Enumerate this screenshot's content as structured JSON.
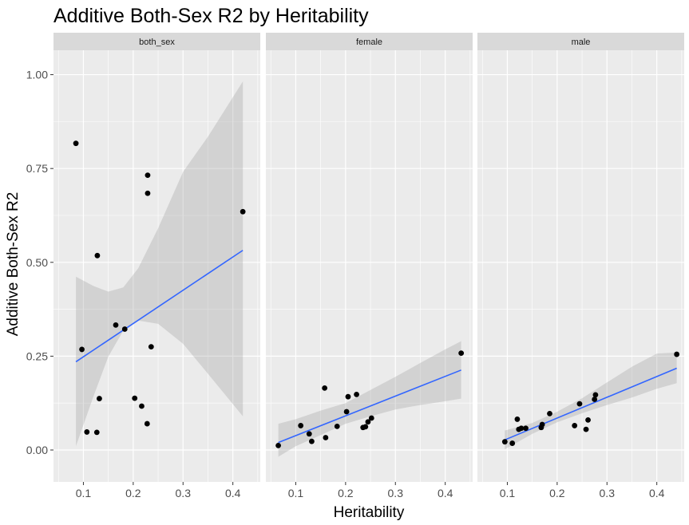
{
  "chart_data": {
    "type": "scatter",
    "title": "Additive Both-Sex R2 by Heritability",
    "xlabel": "Heritability",
    "ylabel": "Additive Both-Sex R2",
    "x_ticks": [
      0.1,
      0.2,
      0.3,
      0.4
    ],
    "x_tick_labels": [
      "0.1",
      "0.2",
      "0.3",
      "0.4"
    ],
    "y_ticks": [
      0.0,
      0.25,
      0.5,
      0.75,
      1.0
    ],
    "y_tick_labels": [
      "0.00",
      "0.25",
      "0.50",
      "0.75",
      "1.00"
    ],
    "xlim": [
      0.04,
      0.455
    ],
    "ylim": [
      -0.085,
      1.065
    ],
    "grid": true,
    "colors": {
      "panel_bg": "#ebebeb",
      "grid": "#ffffff",
      "strip_bg": "#d9d9d9",
      "point": "#000000",
      "fit_line": "#3366ff",
      "ribbon": "#999999"
    },
    "panels": [
      {
        "label": "both_sex",
        "points": [
          [
            0.085,
            0.817
          ],
          [
            0.097,
            0.268
          ],
          [
            0.107,
            0.048
          ],
          [
            0.127,
            0.047
          ],
          [
            0.128,
            0.518
          ],
          [
            0.132,
            0.137
          ],
          [
            0.165,
            0.333
          ],
          [
            0.183,
            0.322
          ],
          [
            0.203,
            0.138
          ],
          [
            0.217,
            0.117
          ],
          [
            0.228,
            0.07
          ],
          [
            0.229,
            0.732
          ],
          [
            0.229,
            0.684
          ],
          [
            0.236,
            0.275
          ],
          [
            0.42,
            0.635
          ]
        ],
        "fit": [
          [
            0.085,
            0.235
          ],
          [
            0.42,
            0.532
          ]
        ],
        "ribbon": [
          [
            0.085,
            0.01,
            0.462
          ],
          [
            0.12,
            0.142,
            0.437
          ],
          [
            0.15,
            0.249,
            0.422
          ],
          [
            0.18,
            0.318,
            0.433
          ],
          [
            0.21,
            0.345,
            0.484
          ],
          [
            0.25,
            0.336,
            0.591
          ],
          [
            0.3,
            0.283,
            0.741
          ],
          [
            0.35,
            0.203,
            0.835
          ],
          [
            0.42,
            0.09,
            0.982
          ]
        ]
      },
      {
        "label": "female",
        "points": [
          [
            0.065,
            0.012
          ],
          [
            0.11,
            0.065
          ],
          [
            0.127,
            0.043
          ],
          [
            0.132,
            0.023
          ],
          [
            0.158,
            0.165
          ],
          [
            0.16,
            0.033
          ],
          [
            0.183,
            0.063
          ],
          [
            0.202,
            0.102
          ],
          [
            0.205,
            0.142
          ],
          [
            0.222,
            0.148
          ],
          [
            0.235,
            0.06
          ],
          [
            0.24,
            0.062
          ],
          [
            0.245,
            0.075
          ],
          [
            0.252,
            0.085
          ],
          [
            0.432,
            0.258
          ]
        ],
        "fit": [
          [
            0.065,
            0.02
          ],
          [
            0.432,
            0.213
          ]
        ],
        "ribbon": [
          [
            0.065,
            -0.018,
            0.07
          ],
          [
            0.1,
            0.01,
            0.082
          ],
          [
            0.15,
            0.04,
            0.105
          ],
          [
            0.2,
            0.07,
            0.125
          ],
          [
            0.25,
            0.09,
            0.16
          ],
          [
            0.3,
            0.108,
            0.195
          ],
          [
            0.35,
            0.12,
            0.232
          ],
          [
            0.4,
            0.13,
            0.268
          ],
          [
            0.432,
            0.137,
            0.29
          ]
        ]
      },
      {
        "label": "male",
        "points": [
          [
            0.095,
            0.022
          ],
          [
            0.11,
            0.018
          ],
          [
            0.12,
            0.082
          ],
          [
            0.123,
            0.055
          ],
          [
            0.128,
            0.058
          ],
          [
            0.137,
            0.058
          ],
          [
            0.168,
            0.06
          ],
          [
            0.17,
            0.068
          ],
          [
            0.185,
            0.097
          ],
          [
            0.235,
            0.065
          ],
          [
            0.245,
            0.123
          ],
          [
            0.258,
            0.055
          ],
          [
            0.262,
            0.08
          ],
          [
            0.275,
            0.135
          ],
          [
            0.277,
            0.147
          ],
          [
            0.44,
            0.255
          ]
        ],
        "fit": [
          [
            0.095,
            0.027
          ],
          [
            0.44,
            0.218
          ]
        ],
        "ribbon": [
          [
            0.095,
            0.002,
            0.052
          ],
          [
            0.15,
            0.043,
            0.072
          ],
          [
            0.2,
            0.074,
            0.102
          ],
          [
            0.25,
            0.098,
            0.138
          ],
          [
            0.3,
            0.12,
            0.18
          ],
          [
            0.35,
            0.14,
            0.222
          ],
          [
            0.4,
            0.163,
            0.257
          ],
          [
            0.44,
            0.178,
            0.26
          ]
        ]
      }
    ]
  }
}
